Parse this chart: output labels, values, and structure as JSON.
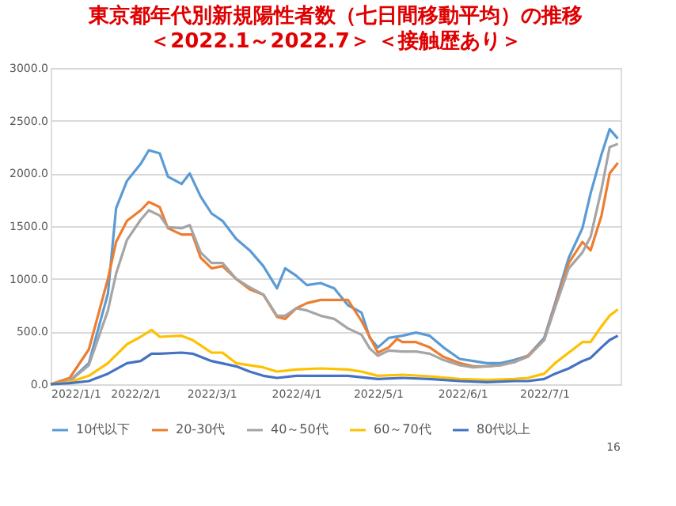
{
  "chart_data": {
    "type": "line",
    "title": "東京都年代別新規陽性者数（七日間移動平均）の推移",
    "subtitle": "＜2022.1～2022.7＞ ＜接触歴あり＞",
    "xlim": [
      "2022-01-01",
      "2022-07-29"
    ],
    "xticks": [
      {
        "value": "2022-01-01",
        "label": "2022/1/1"
      },
      {
        "value": "2022-02-01",
        "label": "2022/2/1"
      },
      {
        "value": "2022-03-01",
        "label": "2022/3/1"
      },
      {
        "value": "2022-04-01",
        "label": "2022/4/1"
      },
      {
        "value": "2022-05-01",
        "label": "2022/5/1"
      },
      {
        "value": "2022-06-01",
        "label": "2022/6/1"
      },
      {
        "value": "2022-07-01",
        "label": "2022/7/1"
      }
    ],
    "ylim": [
      0,
      3000
    ],
    "yticks": [
      {
        "value": 0,
        "label": "0.0"
      },
      {
        "value": 500,
        "label": "500.0"
      },
      {
        "value": 1000,
        "label": "1000.0"
      },
      {
        "value": 1500,
        "label": "1500.0"
      },
      {
        "value": 2000,
        "label": "2000.0"
      },
      {
        "value": 2500,
        "label": "2500.0"
      },
      {
        "value": 3000,
        "label": "3000.0"
      }
    ],
    "grid": "y",
    "legend": "bottom",
    "marker": "none",
    "line_style": "solid",
    "annotations": [
      "16"
    ],
    "series": [
      {
        "name": "10代以下",
        "color": "#5b9bd5",
        "x": [
          "2022-01-01",
          "2022-01-08",
          "2022-01-15",
          "2022-01-22",
          "2022-01-25",
          "2022-01-29",
          "2022-02-03",
          "2022-02-06",
          "2022-02-10",
          "2022-02-13",
          "2022-02-18",
          "2022-02-21",
          "2022-02-25",
          "2022-03-01",
          "2022-03-05",
          "2022-03-10",
          "2022-03-15",
          "2022-03-20",
          "2022-03-25",
          "2022-03-28",
          "2022-04-01",
          "2022-04-05",
          "2022-04-10",
          "2022-04-15",
          "2022-04-20",
          "2022-04-25",
          "2022-04-28",
          "2022-05-01",
          "2022-05-05",
          "2022-05-10",
          "2022-05-15",
          "2022-05-20",
          "2022-05-25",
          "2022-05-31",
          "2022-06-05",
          "2022-06-10",
          "2022-06-15",
          "2022-06-20",
          "2022-06-25",
          "2022-07-01",
          "2022-07-05",
          "2022-07-10",
          "2022-07-15",
          "2022-07-18",
          "2022-07-22",
          "2022-07-25",
          "2022-07-28"
        ],
        "values": [
          0,
          30,
          200,
          860,
          1670,
          1930,
          2090,
          2220,
          2190,
          1970,
          1900,
          2000,
          1780,
          1620,
          1550,
          1380,
          1270,
          1120,
          910,
          1100,
          1030,
          940,
          960,
          910,
          750,
          680,
          440,
          350,
          440,
          460,
          490,
          460,
          350,
          240,
          220,
          200,
          200,
          230,
          270,
          440,
          770,
          1200,
          1480,
          1810,
          2180,
          2420,
          2330
        ]
      },
      {
        "name": "20-30代",
        "color": "#ed7d31",
        "x": [
          "2022-01-01",
          "2022-01-08",
          "2022-01-15",
          "2022-01-22",
          "2022-01-25",
          "2022-01-29",
          "2022-02-03",
          "2022-02-06",
          "2022-02-10",
          "2022-02-13",
          "2022-02-18",
          "2022-02-22",
          "2022-02-25",
          "2022-03-01",
          "2022-03-05",
          "2022-03-10",
          "2022-03-15",
          "2022-03-20",
          "2022-03-25",
          "2022-03-28",
          "2022-04-01",
          "2022-04-05",
          "2022-04-10",
          "2022-04-15",
          "2022-04-20",
          "2022-04-25",
          "2022-04-28",
          "2022-05-01",
          "2022-05-05",
          "2022-05-08",
          "2022-05-10",
          "2022-05-15",
          "2022-05-20",
          "2022-05-25",
          "2022-05-31",
          "2022-06-05",
          "2022-06-10",
          "2022-06-15",
          "2022-06-20",
          "2022-06-25",
          "2022-07-01",
          "2022-07-05",
          "2022-07-10",
          "2022-07-15",
          "2022-07-18",
          "2022-07-22",
          "2022-07-25",
          "2022-07-28"
        ],
        "values": [
          0,
          60,
          330,
          1000,
          1350,
          1550,
          1650,
          1730,
          1680,
          1480,
          1420,
          1420,
          1200,
          1100,
          1120,
          1000,
          900,
          850,
          640,
          620,
          720,
          770,
          800,
          800,
          800,
          600,
          450,
          300,
          350,
          430,
          400,
          400,
          350,
          260,
          200,
          170,
          170,
          180,
          210,
          270,
          420,
          750,
          1150,
          1350,
          1270,
          1600,
          2000,
          2100
        ]
      },
      {
        "name": "40～50代",
        "color": "#a5a5a5",
        "x": [
          "2022-01-01",
          "2022-01-08",
          "2022-01-15",
          "2022-01-22",
          "2022-01-25",
          "2022-01-29",
          "2022-02-03",
          "2022-02-06",
          "2022-02-10",
          "2022-02-13",
          "2022-02-18",
          "2022-02-21",
          "2022-02-25",
          "2022-03-01",
          "2022-03-05",
          "2022-03-10",
          "2022-03-15",
          "2022-03-20",
          "2022-03-25",
          "2022-03-28",
          "2022-04-01",
          "2022-04-05",
          "2022-04-10",
          "2022-04-15",
          "2022-04-20",
          "2022-04-25",
          "2022-04-28",
          "2022-05-01",
          "2022-05-05",
          "2022-05-10",
          "2022-05-15",
          "2022-05-20",
          "2022-05-25",
          "2022-05-31",
          "2022-06-05",
          "2022-06-10",
          "2022-06-15",
          "2022-06-20",
          "2022-06-25",
          "2022-07-01",
          "2022-07-05",
          "2022-07-10",
          "2022-07-15",
          "2022-07-18",
          "2022-07-22",
          "2022-07-25",
          "2022-07-28"
        ],
        "values": [
          0,
          30,
          180,
          700,
          1050,
          1370,
          1560,
          1650,
          1600,
          1490,
          1480,
          1510,
          1250,
          1150,
          1150,
          1000,
          920,
          850,
          650,
          650,
          720,
          700,
          650,
          620,
          530,
          470,
          340,
          270,
          320,
          310,
          310,
          290,
          230,
          180,
          160,
          170,
          180,
          210,
          260,
          420,
          730,
          1100,
          1250,
          1400,
          1850,
          2250,
          2280
        ]
      },
      {
        "name": "60～70代",
        "color": "#ffc000",
        "x": [
          "2022-01-01",
          "2022-01-08",
          "2022-01-15",
          "2022-01-22",
          "2022-01-29",
          "2022-02-03",
          "2022-02-07",
          "2022-02-10",
          "2022-02-18",
          "2022-02-22",
          "2022-03-01",
          "2022-03-05",
          "2022-03-10",
          "2022-03-20",
          "2022-03-25",
          "2022-04-01",
          "2022-04-10",
          "2022-04-20",
          "2022-04-25",
          "2022-05-01",
          "2022-05-10",
          "2022-05-20",
          "2022-05-31",
          "2022-06-10",
          "2022-06-20",
          "2022-06-25",
          "2022-07-01",
          "2022-07-05",
          "2022-07-10",
          "2022-07-15",
          "2022-07-18",
          "2022-07-22",
          "2022-07-25",
          "2022-07-28"
        ],
        "values": [
          0,
          20,
          80,
          200,
          380,
          450,
          515,
          450,
          460,
          420,
          300,
          300,
          200,
          160,
          120,
          140,
          150,
          140,
          120,
          80,
          90,
          75,
          50,
          40,
          50,
          60,
          100,
          200,
          300,
          400,
          400,
          550,
          650,
          710
        ]
      },
      {
        "name": "80代以上",
        "color": "#4472c4",
        "x": [
          "2022-01-01",
          "2022-01-08",
          "2022-01-15",
          "2022-01-22",
          "2022-01-29",
          "2022-02-03",
          "2022-02-07",
          "2022-02-10",
          "2022-02-18",
          "2022-02-22",
          "2022-03-01",
          "2022-03-10",
          "2022-03-15",
          "2022-03-20",
          "2022-03-25",
          "2022-04-01",
          "2022-04-10",
          "2022-04-20",
          "2022-05-01",
          "2022-05-10",
          "2022-05-20",
          "2022-05-31",
          "2022-06-10",
          "2022-06-20",
          "2022-06-25",
          "2022-07-01",
          "2022-07-05",
          "2022-07-10",
          "2022-07-15",
          "2022-07-18",
          "2022-07-22",
          "2022-07-25",
          "2022-07-28"
        ],
        "values": [
          0,
          10,
          30,
          100,
          200,
          220,
          290,
          290,
          300,
          290,
          220,
          170,
          120,
          80,
          60,
          80,
          80,
          80,
          50,
          60,
          50,
          30,
          20,
          30,
          30,
          50,
          100,
          150,
          220,
          250,
          350,
          420,
          460
        ]
      }
    ]
  }
}
